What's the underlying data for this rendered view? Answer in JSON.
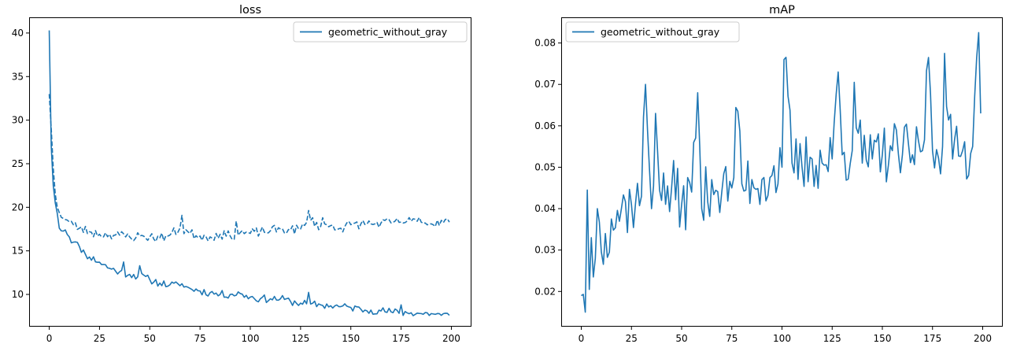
{
  "colors": {
    "series": "#1f77b4",
    "axis": "#000000",
    "legend_border": "#cccccc"
  },
  "chart_data": [
    {
      "type": "line",
      "title": "loss",
      "xlabel": "",
      "ylabel": "",
      "xlim": [
        -10,
        210
      ],
      "ylim": [
        6.3,
        41.8
      ],
      "xticks": [
        0,
        25,
        50,
        75,
        100,
        125,
        150,
        175,
        200
      ],
      "yticks": [
        10,
        15,
        20,
        25,
        30,
        35,
        40
      ],
      "grid": false,
      "legend": {
        "position": "top-right",
        "entries": [
          "geometric_without_gray"
        ]
      },
      "series": [
        {
          "name": "geometric_without_gray",
          "style": "solid",
          "anchors": [
            [
              0,
              40.3
            ],
            [
              1,
              27.0
            ],
            [
              2,
              22.5
            ],
            [
              3,
              20.5
            ],
            [
              4,
              19.3
            ],
            [
              5,
              17.6
            ],
            [
              8,
              17.4
            ],
            [
              10,
              16.6
            ],
            [
              12,
              16.0
            ],
            [
              15,
              15.5
            ],
            [
              18,
              14.6
            ],
            [
              20,
              14.3
            ],
            [
              25,
              13.7
            ],
            [
              30,
              13.0
            ],
            [
              35,
              12.6
            ],
            [
              40,
              12.3
            ],
            [
              45,
              12.1
            ],
            [
              50,
              11.7
            ],
            [
              55,
              11.3
            ],
            [
              60,
              11.1
            ],
            [
              65,
              11.0
            ],
            [
              70,
              10.7
            ],
            [
              75,
              10.4
            ],
            [
              80,
              10.2
            ],
            [
              85,
              10.0
            ],
            [
              90,
              10.0
            ],
            [
              95,
              10.1
            ],
            [
              100,
              9.7
            ],
            [
              105,
              9.5
            ],
            [
              110,
              9.5
            ],
            [
              115,
              9.5
            ],
            [
              120,
              9.2
            ],
            [
              125,
              9.0
            ],
            [
              130,
              8.9
            ],
            [
              135,
              8.8
            ],
            [
              140,
              8.7
            ],
            [
              145,
              8.6
            ],
            [
              150,
              8.5
            ],
            [
              155,
              8.3
            ],
            [
              160,
              8.2
            ],
            [
              165,
              8.1
            ],
            [
              170,
              8.0
            ],
            [
              175,
              7.9
            ],
            [
              180,
              7.9
            ],
            [
              185,
              7.8
            ],
            [
              190,
              7.8
            ],
            [
              195,
              7.6
            ],
            [
              199,
              7.6
            ]
          ],
          "noise": 0.45,
          "spikes": [
            [
              37,
              1.0
            ],
            [
              45,
              1.2
            ],
            [
              66,
              0.6
            ],
            [
              129,
              0.9
            ],
            [
              175,
              0.9
            ]
          ],
          "seed": 11
        },
        {
          "name": "",
          "style": "dashed",
          "anchors": [
            [
              0,
              33.0
            ],
            [
              1,
              29.0
            ],
            [
              2,
              24.5
            ],
            [
              3,
              21.5
            ],
            [
              4,
              20.0
            ],
            [
              5,
              19.4
            ],
            [
              8,
              18.6
            ],
            [
              12,
              18.0
            ],
            [
              15,
              17.6
            ],
            [
              20,
              17.2
            ],
            [
              25,
              16.9
            ],
            [
              30,
              16.9
            ],
            [
              35,
              16.8
            ],
            [
              40,
              16.6
            ],
            [
              45,
              16.7
            ],
            [
              50,
              16.6
            ],
            [
              55,
              16.5
            ],
            [
              60,
              16.8
            ],
            [
              65,
              17.6
            ],
            [
              70,
              17.0
            ],
            [
              75,
              16.7
            ],
            [
              80,
              16.6
            ],
            [
              85,
              16.9
            ],
            [
              90,
              16.7
            ],
            [
              95,
              17.1
            ],
            [
              100,
              17.0
            ],
            [
              105,
              17.2
            ],
            [
              110,
              17.3
            ],
            [
              115,
              17.5
            ],
            [
              120,
              17.4
            ],
            [
              125,
              17.5
            ],
            [
              130,
              18.5
            ],
            [
              135,
              17.8
            ],
            [
              140,
              17.9
            ],
            [
              145,
              17.6
            ],
            [
              150,
              18.0
            ],
            [
              155,
              18.1
            ],
            [
              160,
              18.1
            ],
            [
              165,
              18.2
            ],
            [
              170,
              18.2
            ],
            [
              175,
              18.3
            ],
            [
              180,
              18.4
            ],
            [
              185,
              18.3
            ],
            [
              190,
              18.1
            ],
            [
              195,
              18.5
            ],
            [
              199,
              18.3
            ]
          ],
          "noise": 0.55,
          "spikes": [
            [
              66,
              1.6
            ],
            [
              93,
              1.4
            ],
            [
              129,
              1.8
            ],
            [
              136,
              1.0
            ],
            [
              184,
              1.0
            ]
          ],
          "seed": 23
        }
      ]
    },
    {
      "type": "line",
      "title": "mAP",
      "xlabel": "",
      "ylabel": "",
      "xlim": [
        -10,
        210
      ],
      "ylim": [
        0.0115,
        0.0862
      ],
      "xticks": [
        0,
        25,
        50,
        75,
        100,
        125,
        150,
        175,
        200
      ],
      "yticks": [
        0.02,
        0.03,
        0.04,
        0.05,
        0.06,
        0.07,
        0.08
      ],
      "ytick_labels": [
        "0.02",
        "0.03",
        "0.04",
        "0.05",
        "0.06",
        "0.07",
        "0.08"
      ],
      "grid": false,
      "legend": {
        "position": "top-left",
        "entries": [
          "geometric_without_gray"
        ]
      },
      "series": [
        {
          "name": "geometric_without_gray",
          "style": "solid",
          "anchors": [
            [
              0,
              0.019
            ],
            [
              1,
              0.0193
            ],
            [
              2,
              0.015
            ],
            [
              3,
              0.0445
            ],
            [
              4,
              0.0205
            ],
            [
              5,
              0.033
            ],
            [
              6,
              0.0235
            ],
            [
              8,
              0.04
            ],
            [
              10,
              0.0295
            ],
            [
              12,
              0.034
            ],
            [
              15,
              0.0375
            ],
            [
              20,
              0.04
            ],
            [
              25,
              0.041
            ],
            [
              30,
              0.043
            ],
            [
              32,
              0.07
            ],
            [
              35,
              0.04
            ],
            [
              37,
              0.063
            ],
            [
              40,
              0.042
            ],
            [
              45,
              0.045
            ],
            [
              50,
              0.041
            ],
            [
              55,
              0.044
            ],
            [
              58,
              0.068
            ],
            [
              60,
              0.04
            ],
            [
              65,
              0.047
            ],
            [
              70,
              0.044
            ],
            [
              75,
              0.045
            ],
            [
              78,
              0.0635
            ],
            [
              80,
              0.046
            ],
            [
              85,
              0.047
            ],
            [
              90,
              0.047
            ],
            [
              95,
              0.048
            ],
            [
              100,
              0.05
            ],
            [
              101,
              0.076
            ],
            [
              105,
              0.051
            ],
            [
              110,
              0.05
            ],
            [
              115,
              0.052
            ],
            [
              120,
              0.051
            ],
            [
              125,
              0.052
            ],
            [
              128,
              0.073
            ],
            [
              130,
              0.053
            ],
            [
              135,
              0.054
            ],
            [
              136,
              0.0705
            ],
            [
              140,
              0.051
            ],
            [
              145,
              0.052
            ],
            [
              150,
              0.053
            ],
            [
              155,
              0.054
            ],
            [
              160,
              0.053
            ],
            [
              165,
              0.053
            ],
            [
              170,
              0.054
            ],
            [
              173,
              0.0765
            ],
            [
              175,
              0.054
            ],
            [
              180,
              0.055
            ],
            [
              181,
              0.0775
            ],
            [
              185,
              0.052
            ],
            [
              190,
              0.054
            ],
            [
              195,
              0.055
            ],
            [
              198,
              0.0825
            ],
            [
              199,
              0.063
            ]
          ],
          "noise": 0.0075,
          "spikes": [],
          "seed": 37
        }
      ]
    }
  ]
}
